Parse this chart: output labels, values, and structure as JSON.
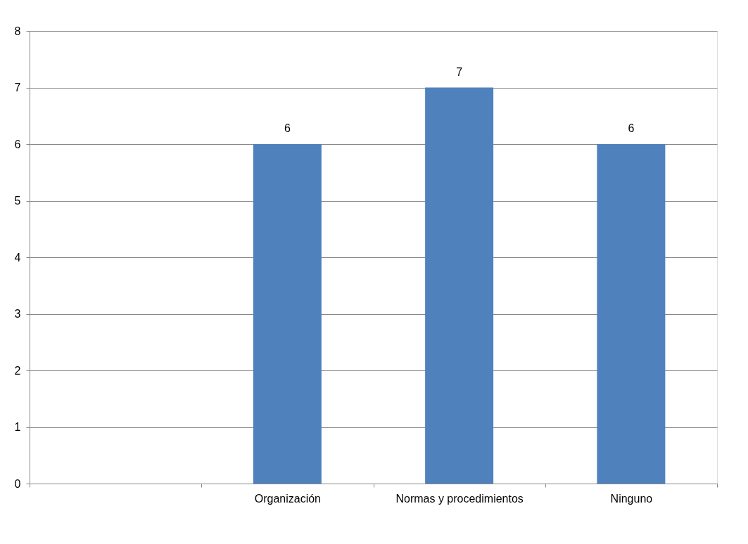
{
  "chart_data": {
    "type": "bar",
    "categories": [
      null,
      "Organización",
      "Normas y procedimientos",
      "Ninguno"
    ],
    "values": [
      null,
      6,
      7,
      6
    ],
    "color": "#4f81bd",
    "ylim": [
      0,
      8
    ],
    "yticks": [
      0,
      1,
      2,
      3,
      4,
      5,
      6,
      7,
      8
    ],
    "grid": "y",
    "data_labels": true
  }
}
